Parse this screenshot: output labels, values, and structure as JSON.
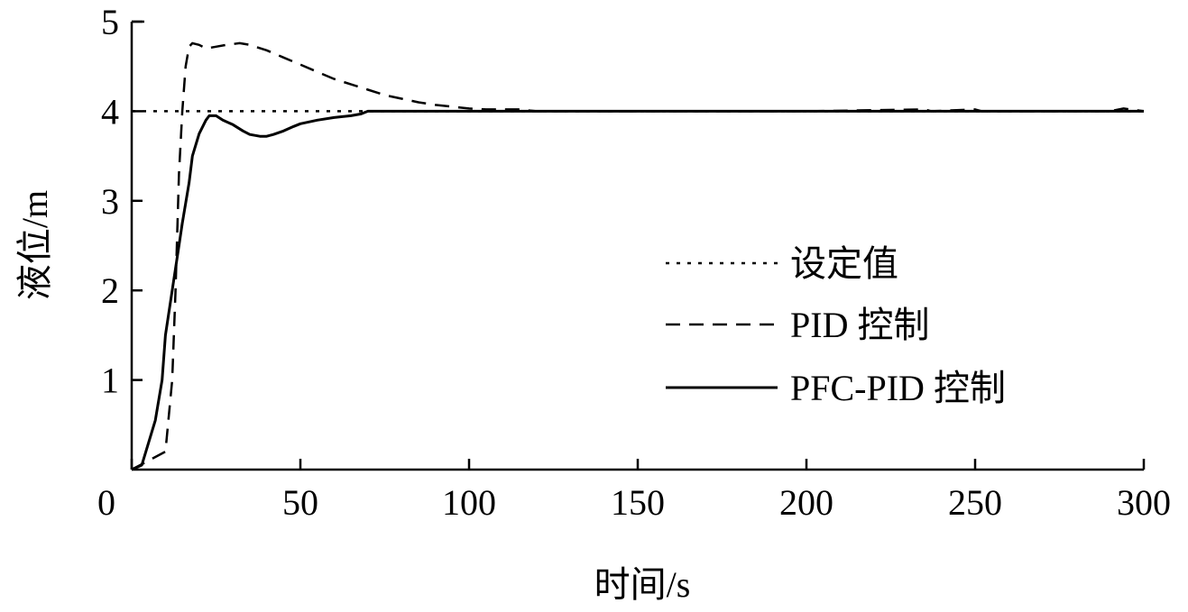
{
  "chart_data": {
    "type": "line",
    "title": "",
    "xlabel": "时间/s",
    "ylabel": "液位/m",
    "xlim": [
      0,
      300
    ],
    "ylim": [
      0,
      5
    ],
    "xticks": [
      "0",
      "50",
      "100",
      "150",
      "200",
      "250",
      "300"
    ],
    "yticks": [
      "1",
      "2",
      "3",
      "4",
      "5"
    ],
    "grid": false,
    "legend_position": "center-right",
    "series": [
      {
        "name": "设定值",
        "style": "dotted",
        "x": [
          0,
          300
        ],
        "y": [
          4,
          4
        ]
      },
      {
        "name": "PID 控制",
        "style": "dashed",
        "x": [
          0,
          10,
          12,
          13,
          14,
          15,
          16,
          17,
          18,
          20,
          22,
          25,
          28,
          32,
          35,
          40,
          45,
          50,
          55,
          60,
          65,
          70,
          75,
          80,
          85,
          90,
          95,
          100,
          105,
          110,
          115,
          120,
          150,
          200,
          235,
          237,
          250,
          252,
          290,
          294,
          300
        ],
        "y": [
          0,
          0.2,
          1.0,
          2.0,
          3.3,
          4.0,
          4.5,
          4.72,
          4.76,
          4.74,
          4.7,
          4.72,
          4.74,
          4.76,
          4.74,
          4.68,
          4.6,
          4.52,
          4.44,
          4.36,
          4.3,
          4.24,
          4.18,
          4.14,
          4.1,
          4.07,
          4.05,
          4.03,
          4.02,
          4.02,
          4.02,
          4.0,
          4.0,
          4.0,
          4.02,
          4.0,
          4.02,
          4.0,
          4.0,
          4.03,
          4.0
        ]
      },
      {
        "name": "PFC-PID 控制",
        "style": "solid",
        "x": [
          0,
          3,
          5,
          7,
          9,
          10,
          12,
          14,
          15,
          17,
          18,
          20,
          22,
          23,
          25,
          27,
          30,
          33,
          35,
          38,
          40,
          42,
          45,
          48,
          50,
          55,
          60,
          65,
          68,
          70,
          80,
          100,
          150,
          200,
          250,
          300
        ],
        "y": [
          0,
          0.05,
          0.3,
          0.55,
          1.0,
          1.5,
          2.0,
          2.5,
          2.75,
          3.2,
          3.5,
          3.75,
          3.9,
          3.95,
          3.95,
          3.9,
          3.85,
          3.78,
          3.74,
          3.72,
          3.72,
          3.74,
          3.78,
          3.83,
          3.86,
          3.9,
          3.93,
          3.95,
          3.97,
          4.0,
          4.0,
          4.0,
          4.0,
          4.0,
          4.0,
          4.0
        ]
      }
    ]
  }
}
